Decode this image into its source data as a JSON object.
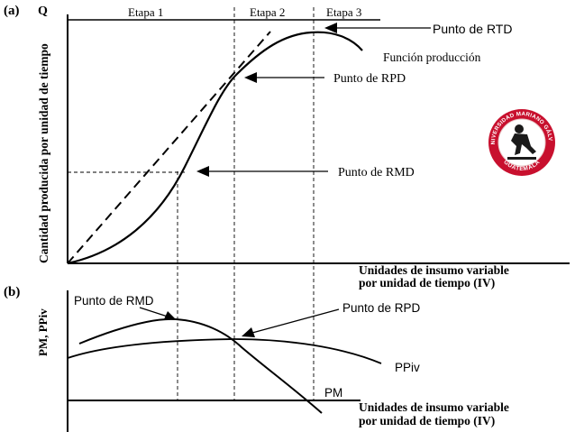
{
  "panel_a": {
    "letter": "(a)",
    "y_axis_symbol": "Q",
    "y_axis_label": "Cantidad producida por unidad de tiempo",
    "x_axis_label_line1": "Unidades de insumo variable",
    "x_axis_label_line2": "por unidad de tiempo (IV)",
    "stages": [
      "Etapa 1",
      "Etapa 2",
      "Etapa 3"
    ],
    "curve_label": "Función producción",
    "point_rtd": "Punto de RTD",
    "point_rpd": "Punto de RPD",
    "point_rmd": "Punto de RMD"
  },
  "panel_b": {
    "letter": "(b)",
    "y_axis_label": "PM, PPiv",
    "x_axis_label_line1": "Unidades de insumo variable",
    "x_axis_label_line2": "por unidad de tiempo (IV)",
    "point_rmd": "Punto de RMD",
    "point_rpd": "Punto de RPD",
    "ppiv_label": "PPiv",
    "pm_label": "PM"
  },
  "logo": {
    "text_top": "UNIVERSIDAD MARIANO GÁLVEZ",
    "text_bottom": "GUATEMALA",
    "colors": {
      "ring": "#c8102e",
      "inner": "#ffffff",
      "figure": "#1a1a1a"
    }
  }
}
